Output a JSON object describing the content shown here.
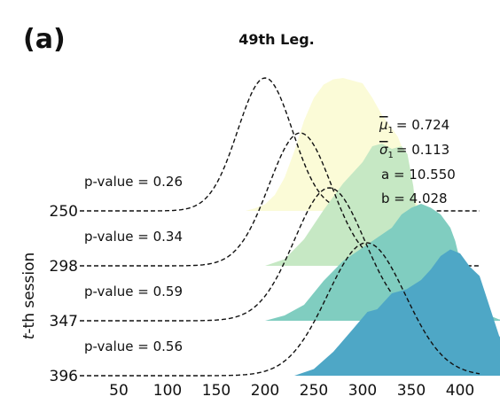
{
  "panel_label": "(a)",
  "chart_data": {
    "type": "area",
    "title": "49th Leg.",
    "xlabel": "",
    "ylabel_prefix": "t",
    "ylabel_suffix": "-th session",
    "xlim": [
      10,
      420
    ],
    "x_ticks": [
      50,
      100,
      150,
      200,
      250,
      300,
      350,
      400
    ],
    "grid": false,
    "legend": "none",
    "stats": {
      "mu_label": "μ",
      "mu_sub": "1",
      "mu_eq": "= 0.724",
      "sigma_label": "σ",
      "sigma_sub": "1",
      "sigma_eq": "= 0.113",
      "a_text": "a = 10.550",
      "b_text": "b = 4.028"
    },
    "sessions": [
      {
        "label": "250",
        "pvalue": "p-value = 0.26",
        "color": "#fbfbd7",
        "empirical": [
          [
            180,
            0
          ],
          [
            190,
            0.02
          ],
          [
            200,
            0.05
          ],
          [
            210,
            0.12
          ],
          [
            220,
            0.25
          ],
          [
            230,
            0.45
          ],
          [
            240,
            0.68
          ],
          [
            250,
            0.85
          ],
          [
            260,
            0.95
          ],
          [
            270,
            0.99
          ],
          [
            280,
            1.0
          ],
          [
            290,
            0.98
          ],
          [
            300,
            0.96
          ],
          [
            310,
            0.85
          ],
          [
            320,
            0.72
          ],
          [
            330,
            0.62
          ],
          [
            336,
            0.56
          ],
          [
            342,
            0.45
          ],
          [
            350,
            0.2
          ],
          [
            356,
            0.05
          ],
          [
            362,
            0
          ]
        ],
        "fitted_mean": 200,
        "fitted_sd": 28
      },
      {
        "label": "298",
        "pvalue": "p-value = 0.34",
        "color": "#c6e8c4",
        "empirical": [
          [
            200,
            0
          ],
          [
            220,
            0.05
          ],
          [
            240,
            0.2
          ],
          [
            260,
            0.42
          ],
          [
            280,
            0.62
          ],
          [
            300,
            0.78
          ],
          [
            310,
            0.9
          ],
          [
            320,
            0.92
          ],
          [
            330,
            0.88
          ],
          [
            340,
            0.9
          ],
          [
            346,
            0.84
          ],
          [
            352,
            0.6
          ],
          [
            358,
            0.2
          ],
          [
            362,
            0
          ]
        ],
        "fitted_mean": 236,
        "fitted_sd": 32
      },
      {
        "label": "347",
        "pvalue": "p-value = 0.59",
        "color": "#80cdc0",
        "empirical": [
          [
            200,
            0
          ],
          [
            220,
            0.04
          ],
          [
            240,
            0.12
          ],
          [
            260,
            0.3
          ],
          [
            280,
            0.45
          ],
          [
            300,
            0.55
          ],
          [
            320,
            0.65
          ],
          [
            330,
            0.7
          ],
          [
            340,
            0.8
          ],
          [
            350,
            0.85
          ],
          [
            360,
            0.88
          ],
          [
            370,
            0.85
          ],
          [
            380,
            0.8
          ],
          [
            390,
            0.7
          ],
          [
            395,
            0.6
          ],
          [
            400,
            0.45
          ],
          [
            410,
            0.1
          ],
          [
            440,
            0.01
          ],
          [
            480,
            0
          ]
        ],
        "fitted_mean": 266,
        "fitted_sd": 36
      },
      {
        "label": "396",
        "pvalue": "p-value = 0.56",
        "color": "#4ea7c6",
        "empirical": [
          [
            230,
            0
          ],
          [
            250,
            0.05
          ],
          [
            270,
            0.18
          ],
          [
            290,
            0.35
          ],
          [
            305,
            0.48
          ],
          [
            315,
            0.5
          ],
          [
            330,
            0.62
          ],
          [
            345,
            0.65
          ],
          [
            360,
            0.72
          ],
          [
            370,
            0.8
          ],
          [
            380,
            0.9
          ],
          [
            390,
            0.95
          ],
          [
            400,
            0.92
          ],
          [
            410,
            0.82
          ],
          [
            420,
            0.75
          ],
          [
            440,
            0.3
          ],
          [
            460,
            0.08
          ],
          [
            475,
            0.02
          ],
          [
            480,
            0
          ]
        ],
        "fitted_mean": 304,
        "fitted_sd": 40
      }
    ]
  }
}
